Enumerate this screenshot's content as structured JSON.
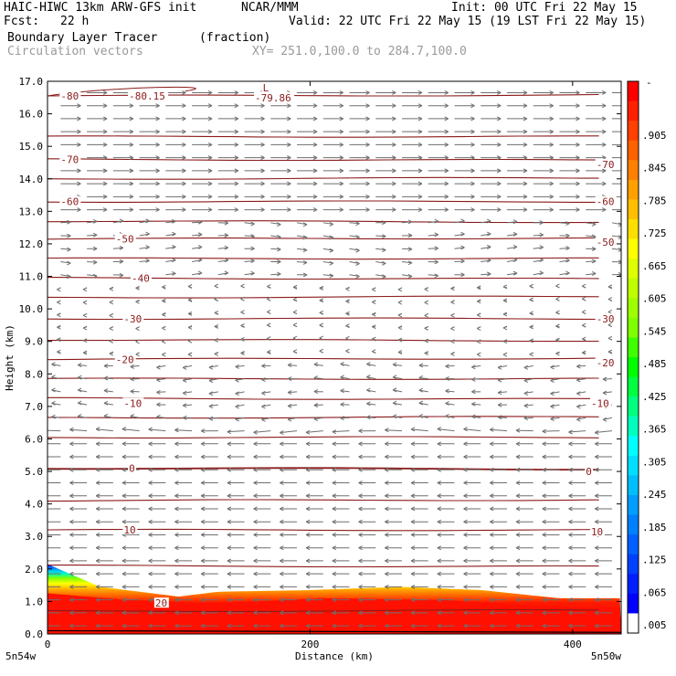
{
  "header": {
    "title": "HAIC-HIWC 13km ARW-GFS init",
    "org": "NCAR/MMM",
    "init": "Init: 00 UTC Fri 22 May 15",
    "fcst_label": "Fcst:",
    "fcst_value": "22 h",
    "valid": "Valid: 22 UTC Fri 22 May 15 (19 LST Fri 22 May 15)",
    "field": "Boundary Layer Tracer",
    "field_units": "(fraction)",
    "overlay": "Circulation vectors",
    "xy": "XY= 251.0,100.0 to 284.7,100.0"
  },
  "colors": {
    "contour": "#8b1a1a",
    "vector": "#6e6e6e",
    "tracer_high": "#ff1a00",
    "tracer_low": "#0000ff"
  },
  "chart_data": {
    "type": "heatmap",
    "xlabel": "Distance (km)",
    "ylabel": "Height (km)",
    "xlim": [
      0,
      437
    ],
    "ylim": [
      0,
      17
    ],
    "x_ticks": [
      0,
      200,
      400
    ],
    "y_ticks": [
      "0.0",
      "1.0",
      "2.0",
      "3.0",
      "4.0",
      "5.0",
      "6.0",
      "7.0",
      "8.0",
      "9.0",
      "10.0",
      "11.0",
      "12.0",
      "13.0",
      "14.0",
      "15.0",
      "16.0",
      "17.0"
    ],
    "x_left_label": "5n54w",
    "x_right_label": "5n50w",
    "colorbar_labels": [
      ".905",
      ".845",
      ".785",
      ".725",
      ".665",
      ".605",
      ".545",
      ".485",
      ".425",
      ".365",
      ".305",
      ".245",
      ".185",
      ".125",
      ".065",
      ".005"
    ],
    "colorbar_top_label": "-",
    "colorbar_colors": [
      "#ff0000",
      "#ff2000",
      "#ff4000",
      "#ff6000",
      "#ff8000",
      "#ff9f00",
      "#ffbf00",
      "#ffdf00",
      "#ffff00",
      "#dfff00",
      "#bfff00",
      "#9fff00",
      "#7fff00",
      "#40ff00",
      "#00ff00",
      "#00ff40",
      "#00ff80",
      "#00ffbf",
      "#00ffff",
      "#00dfff",
      "#00bfff",
      "#009fff",
      "#0080ff",
      "#0060ff",
      "#0040ff",
      "#0020ff",
      "#0000ff",
      "#ffffff"
    ],
    "isotherm_labels": [
      {
        "text": "-80",
        "x": 10,
        "y": 16.55
      },
      {
        "text": "-80.15",
        "x": 62,
        "y": 16.55
      },
      {
        "text": "L",
        "x": 164,
        "y": 16.8
      },
      {
        "text": "-79.86",
        "x": 158,
        "y": 16.5
      },
      {
        "text": "-70",
        "x": 10,
        "y": 14.6
      },
      {
        "text": "-70",
        "x": 418,
        "y": 14.45
      },
      {
        "text": "-60",
        "x": 10,
        "y": 13.3
      },
      {
        "text": "-60",
        "x": 418,
        "y": 13.3
      },
      {
        "text": "-50",
        "x": 52,
        "y": 12.15
      },
      {
        "text": "-50",
        "x": 418,
        "y": 12.05
      },
      {
        "text": "-40",
        "x": 64,
        "y": 10.95
      },
      {
        "text": "-30",
        "x": 58,
        "y": 9.7
      },
      {
        "text": "-30",
        "x": 418,
        "y": 9.7
      },
      {
        "text": "-20",
        "x": 52,
        "y": 8.45
      },
      {
        "text": "-20",
        "x": 418,
        "y": 8.35
      },
      {
        "text": "-10",
        "x": 58,
        "y": 7.1
      },
      {
        "text": "-10",
        "x": 414,
        "y": 7.1
      },
      {
        "text": "0",
        "x": 62,
        "y": 5.1
      },
      {
        "text": "0",
        "x": 410,
        "y": 5.0
      },
      {
        "text": "10",
        "x": 58,
        "y": 3.2
      },
      {
        "text": "10",
        "x": 414,
        "y": 3.15
      },
      {
        "text": "20",
        "x": 82,
        "y": 0.95
      }
    ],
    "contour_heights": [
      16.55,
      15.3,
      14.6,
      14.0,
      13.3,
      12.7,
      12.15,
      11.55,
      10.95,
      10.35,
      9.7,
      9.05,
      8.45,
      7.85,
      7.25,
      6.65,
      6.05,
      5.1,
      4.1,
      3.2,
      2.1,
      0.7
    ],
    "tracer_top_km": [
      [
        0,
        2.15
      ],
      [
        40,
        1.45
      ],
      [
        100,
        1.15
      ],
      [
        130,
        1.3
      ],
      [
        200,
        1.35
      ],
      [
        270,
        1.45
      ],
      [
        330,
        1.35
      ],
      [
        390,
        1.1
      ],
      [
        437,
        1.1
      ]
    ],
    "red_top_km": [
      [
        0,
        1.25
      ],
      [
        60,
        1.05
      ],
      [
        120,
        0.95
      ],
      [
        160,
        1.0
      ],
      [
        210,
        1.1
      ],
      [
        300,
        1.05
      ],
      [
        380,
        0.85
      ],
      [
        437,
        0.8
      ]
    ]
  }
}
